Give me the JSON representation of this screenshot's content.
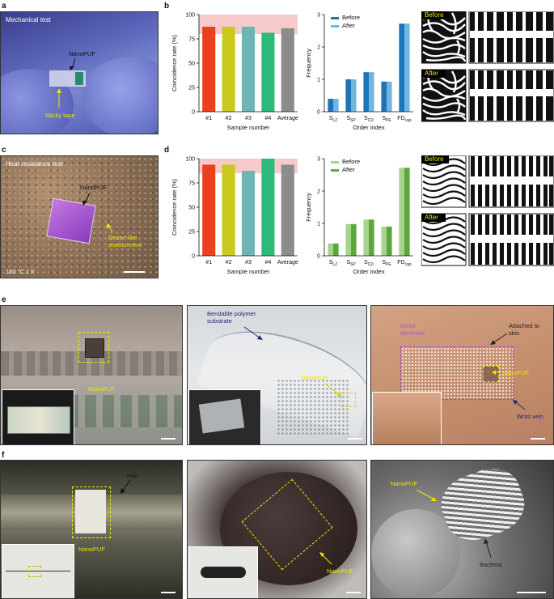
{
  "panels": {
    "a": "a",
    "b": "b",
    "c": "c",
    "d": "d",
    "e": "e",
    "f": "f"
  },
  "photo_a": {
    "title": "Mechanical test",
    "nanopuf": "NanoPUF",
    "tape": "Sticky tape"
  },
  "photo_c": {
    "title": "Heat resistance test",
    "nanopuf": "NanoPUF",
    "env": "Desert-like environment",
    "temp": "150 °C 1 h"
  },
  "photo_e1": {
    "nanopuf": "NanoPUF"
  },
  "photo_e2": {
    "substrate": "Bendable polymer substrate",
    "nanopuf": "NanoPUF"
  },
  "photo_e3": {
    "electrode": "Metal electrode",
    "skin": "Attached to skin",
    "nanopuf": "NanoPUF",
    "vein": "Wrist vein"
  },
  "photo_f1": {
    "hair": "Hair",
    "nanopuf": "NanoPUF"
  },
  "photo_f2": {
    "nanopuf": "NanoPUF"
  },
  "photo_f3": {
    "nanopuf": "NanoPUF",
    "bacteria": "Bacteria"
  },
  "patterns": {
    "before": "Before",
    "after": "After"
  },
  "colors": {
    "bar1": "#e8411b",
    "bar2": "#c8c81e",
    "bar3": "#6db5b5",
    "bar4": "#2dba78",
    "bar5": "#8c8c8c",
    "band": "#f4b4b4",
    "before_blue": "#1f73b7",
    "after_blue": "#6fb6e0",
    "before_green": "#a8d38c",
    "after_green": "#5aa83c"
  },
  "chart_data": [
    {
      "type": "bar",
      "panel": "b",
      "categories": [
        "#1",
        "#2",
        "#3",
        "#4",
        "Average"
      ],
      "values": [
        87.5,
        87.5,
        87.5,
        81.3,
        85.9
      ],
      "xlabel": "Sample number",
      "ylabel": "Coincidence rate (%)",
      "ylim": [
        0,
        100
      ],
      "yticks": [
        "0",
        "25",
        "50",
        "75",
        "100"
      ],
      "band": [
        80,
        100
      ]
    },
    {
      "type": "bar",
      "panel": "b",
      "categories": [
        "S_LZ",
        "S_SP",
        "S_CD",
        "S_PE",
        "FD_cap"
      ],
      "category_labels": [
        {
          "main": "S",
          "sub": "LZ"
        },
        {
          "main": "S",
          "sub": "SP"
        },
        {
          "main": "S",
          "sub": "CD"
        },
        {
          "main": "S",
          "sub": "PE"
        },
        {
          "main": "FD",
          "sub": "cap"
        }
      ],
      "series": [
        {
          "name": "Before",
          "values": [
            0.4,
            1.0,
            1.22,
            0.93,
            2.72
          ]
        },
        {
          "name": "After",
          "values": [
            0.4,
            1.0,
            1.22,
            0.93,
            2.72
          ]
        }
      ],
      "xlabel": "Order index",
      "ylabel": "Frequency",
      "ylim": [
        0,
        3
      ],
      "yticks": [
        "0",
        "1",
        "2",
        "3"
      ],
      "legend": "top-left"
    },
    {
      "type": "bar",
      "panel": "d",
      "categories": [
        "#1",
        "#2",
        "#3",
        "#4",
        "Average"
      ],
      "values": [
        93.8,
        93.8,
        87.5,
        100,
        93.8
      ],
      "xlabel": "Sample number",
      "ylabel": "Coincidence rate (%)",
      "ylim": [
        0,
        100
      ],
      "yticks": [
        "0",
        "25",
        "50",
        "75",
        "100"
      ],
      "band": [
        85,
        100
      ]
    },
    {
      "type": "bar",
      "panel": "d",
      "categories": [
        "S_LZ",
        "S_SP",
        "S_CD",
        "S_PE",
        "FD_cap"
      ],
      "category_labels": [
        {
          "main": "S",
          "sub": "LZ"
        },
        {
          "main": "S",
          "sub": "SP"
        },
        {
          "main": "S",
          "sub": "CD"
        },
        {
          "main": "S",
          "sub": "PE"
        },
        {
          "main": "FD",
          "sub": "cap"
        }
      ],
      "series": [
        {
          "name": "Before",
          "values": [
            0.38,
            0.98,
            1.12,
            0.9,
            2.72
          ]
        },
        {
          "name": "After",
          "values": [
            0.38,
            0.98,
            1.12,
            0.9,
            2.72
          ]
        }
      ],
      "xlabel": "Order index",
      "ylabel": "Frequency",
      "ylim": [
        0,
        3
      ],
      "yticks": [
        "0",
        "1",
        "2",
        "3"
      ],
      "legend": "top-left"
    }
  ]
}
